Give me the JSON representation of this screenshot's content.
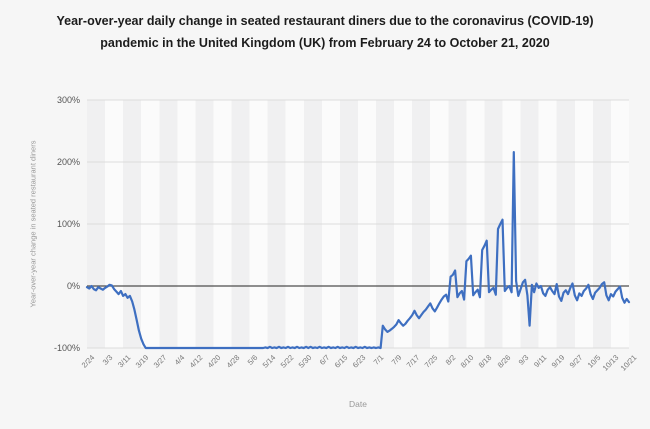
{
  "title": "Year-over-year daily change in seated restaurant diners due to the coronavirus (COVID-19) pandemic in the United Kingdom (UK) from February 24 to October 21, 2020",
  "colors": {
    "background": "#f6f6f6",
    "line": "#3e6fc1",
    "zero_line": "#4d4d4d",
    "gridline": "#dcdcdc",
    "band_dark": "#f0f0f1",
    "band_light": "#fbfbfb",
    "title_text": "#1c1c1c",
    "tick_text": "#666666"
  },
  "chart_data": {
    "type": "line",
    "title": "Year-over-year daily change in seated restaurant diners due to the coronavirus (COVID-19) pandemic in the United Kingdom (UK) from February 24 to October 21, 2020",
    "xlabel": "Date",
    "ylabel": "Year-over-year change in seated restaurant diners",
    "ylim": [
      -100,
      300
    ],
    "grid": true,
    "legend": "none",
    "y_ticks": [
      300,
      200,
      100,
      0,
      -100
    ],
    "y_tick_labels": [
      "300%",
      "200%",
      "100%",
      "0%",
      "-100%"
    ],
    "x_tick_labels": [
      "2/24",
      "3/3",
      "3/11",
      "3/19",
      "3/27",
      "4/4",
      "4/12",
      "4/20",
      "4/28",
      "5/6",
      "5/14",
      "5/22",
      "5/30",
      "6/7",
      "6/15",
      "6/23",
      "7/1",
      "7/9",
      "7/17",
      "7/25",
      "8/2",
      "8/10",
      "8/18",
      "8/26",
      "9/3",
      "9/11",
      "9/19",
      "9/27",
      "10/5",
      "10/13",
      "10/21"
    ],
    "x_tick_step_days": 8,
    "x_start_date": "2/24",
    "x_end_date": "10/21",
    "peak_value_pct": 216,
    "peak_date": "8/31",
    "values": [
      -2,
      -4,
      0,
      -5,
      -7,
      -2,
      -4,
      -6,
      -3,
      -1,
      2,
      1,
      -5,
      -9,
      -13,
      -8,
      -16,
      -13,
      -19,
      -16,
      -25,
      -38,
      -55,
      -72,
      -85,
      -94,
      -100,
      -100,
      -100,
      -100,
      -100,
      -100,
      -100,
      -100,
      -100,
      -100,
      -100,
      -100,
      -100,
      -100,
      -100,
      -100,
      -100,
      -100,
      -100,
      -100,
      -100,
      -100,
      -100,
      -100,
      -100,
      -100,
      -100,
      -100,
      -100,
      -100,
      -100,
      -100,
      -100,
      -100,
      -100,
      -100,
      -100,
      -100,
      -100,
      -100,
      -100,
      -100,
      -100,
      -100,
      -100,
      -100,
      -100,
      -100,
      -100,
      -100,
      -100,
      -100,
      -100,
      -99,
      -100,
      -98,
      -100,
      -99,
      -100,
      -98,
      -100,
      -99,
      -100,
      -98,
      -100,
      -99,
      -100,
      -98,
      -100,
      -99,
      -100,
      -98,
      -100,
      -98,
      -100,
      -99,
      -100,
      -98,
      -100,
      -99,
      -100,
      -98,
      -100,
      -99,
      -100,
      -98,
      -100,
      -99,
      -100,
      -98,
      -100,
      -99,
      -100,
      -98,
      -100,
      -99,
      -100,
      -98,
      -100,
      -99,
      -100,
      -99,
      -100,
      -99,
      -100,
      -64,
      -70,
      -74,
      -72,
      -69,
      -66,
      -62,
      -55,
      -60,
      -64,
      -61,
      -56,
      -52,
      -47,
      -40,
      -47,
      -52,
      -47,
      -42,
      -38,
      -33,
      -28,
      -36,
      -41,
      -35,
      -28,
      -22,
      -17,
      -14,
      -25,
      15,
      18,
      25,
      -18,
      -12,
      -8,
      -22,
      40,
      44,
      49,
      -15,
      -10,
      -6,
      -18,
      58,
      65,
      73,
      -10,
      -6,
      -3,
      -14,
      92,
      100,
      107,
      -8,
      -3,
      0,
      -10,
      216,
      8,
      -16,
      -5,
      6,
      10,
      -15,
      -64,
      2,
      -10,
      4,
      -3,
      0,
      -12,
      -16,
      -6,
      -2,
      -8,
      -13,
      3,
      -17,
      -24,
      -11,
      -7,
      -13,
      -3,
      4,
      -15,
      -23,
      -12,
      -16,
      -8,
      -4,
      2,
      -13,
      -21,
      -11,
      -7,
      -3,
      3,
      6,
      -15,
      -23,
      -13,
      -17,
      -9,
      -5,
      -1,
      -19,
      -27,
      -21,
      -26
    ]
  }
}
